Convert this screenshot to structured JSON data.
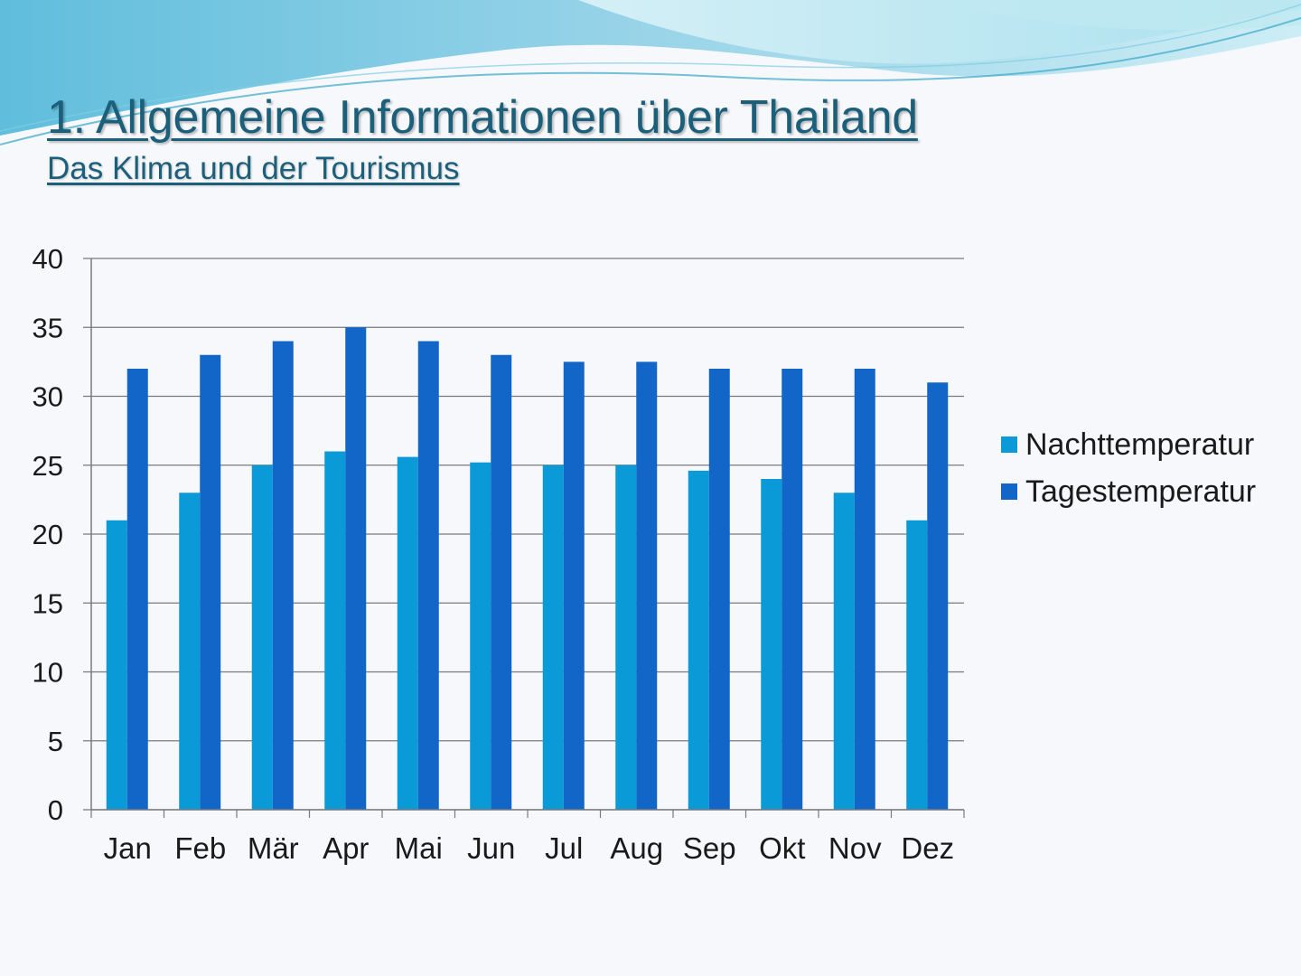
{
  "slide": {
    "title": "1. Allgemeine Informationen über Thailand",
    "subtitle": "Das Klima und der Tourismus"
  },
  "colors": {
    "night": "#0a9ad8",
    "day": "#1166c8",
    "grid": "#7a7a7a",
    "title": "#1b5f7a"
  },
  "chart_data": {
    "type": "bar",
    "title": "",
    "xlabel": "",
    "ylabel": "",
    "categories": [
      "Jan",
      "Feb",
      "Mär",
      "Apr",
      "Mai",
      "Jun",
      "Jul",
      "Aug",
      "Sep",
      "Okt",
      "Nov",
      "Dez"
    ],
    "series": [
      {
        "name": "Nachttemperatur",
        "values": [
          21,
          23,
          25,
          26,
          25.6,
          25.2,
          25,
          25,
          24.6,
          24,
          23,
          21
        ]
      },
      {
        "name": "Tagestemperatur",
        "values": [
          32,
          33,
          34,
          35,
          34,
          33,
          32.5,
          32.5,
          32,
          32,
          32,
          31
        ]
      }
    ],
    "ylim": [
      0,
      40
    ],
    "yticks": [
      0,
      5,
      10,
      15,
      20,
      25,
      30,
      35,
      40
    ],
    "grid": true,
    "legend_position": "right"
  }
}
